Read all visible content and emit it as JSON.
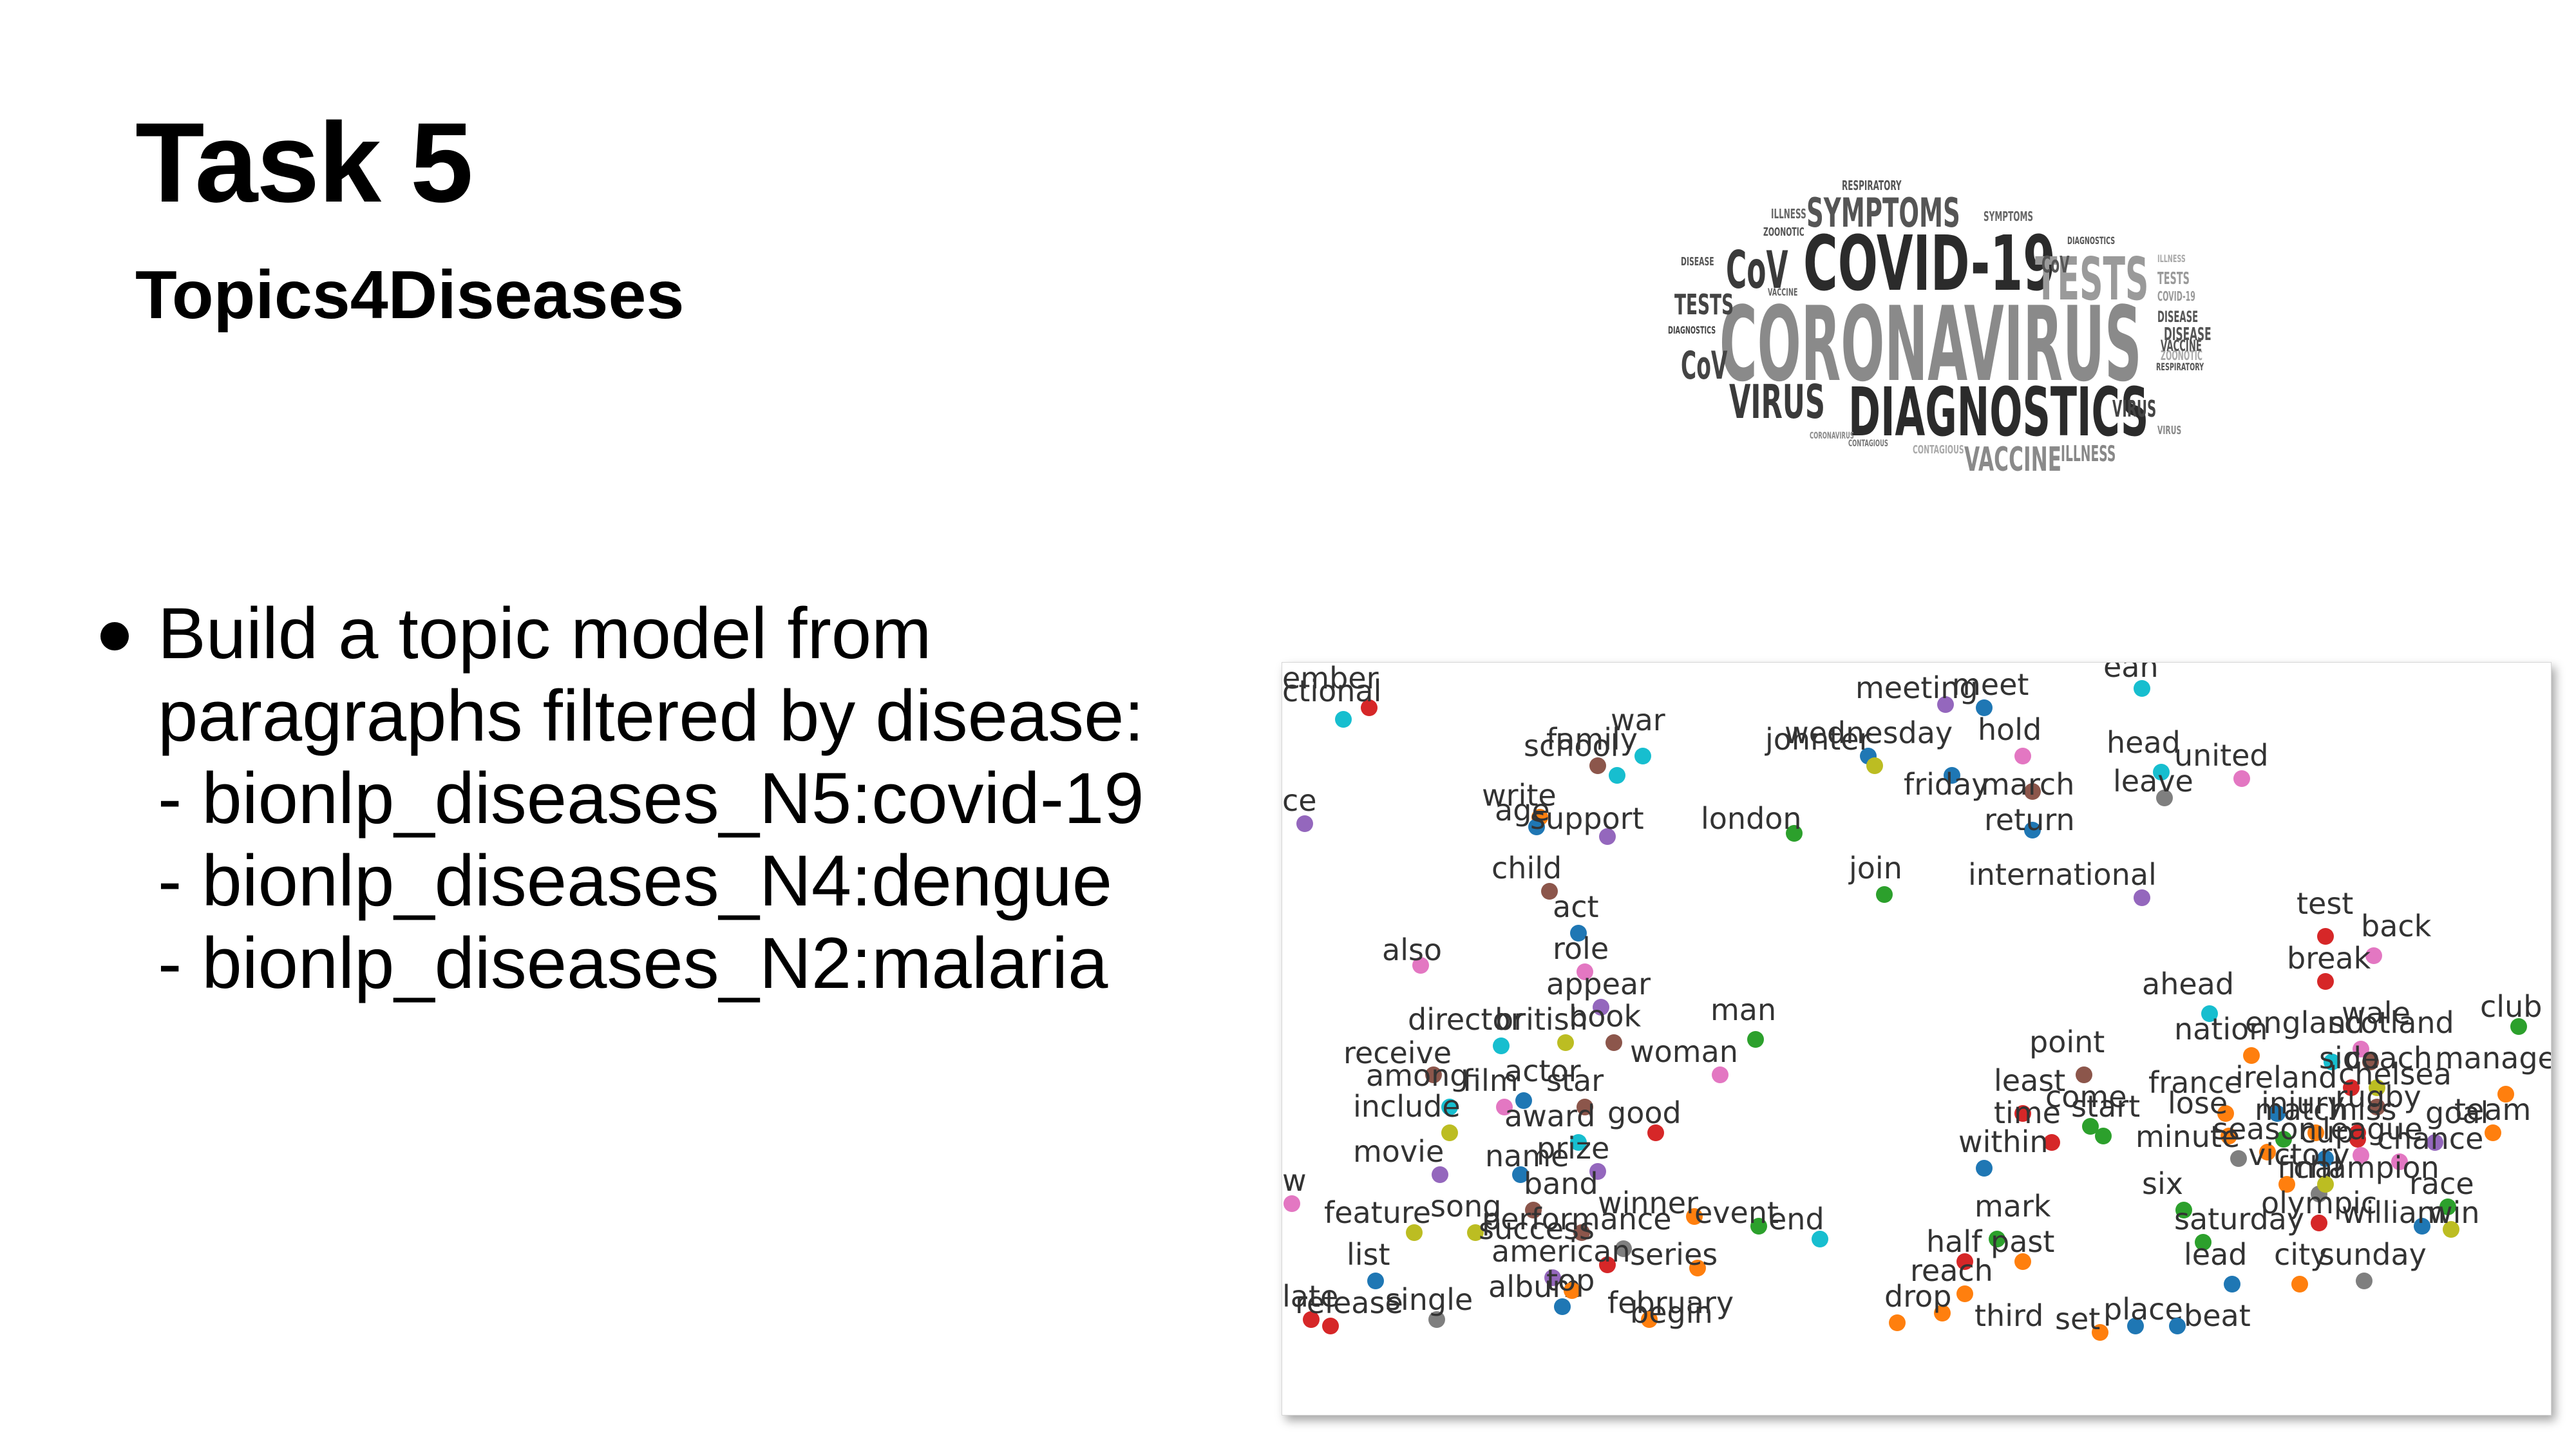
{
  "slide": {
    "title": "Task 5",
    "subtitle": "Topics4Diseases",
    "bullet": {
      "lines": [
        "Build a topic model from",
        "paragraphs filtered by disease:",
        "- bionlp_diseases_N5:covid-19",
        "- bionlp_diseases_N4:dengue",
        "- bionlp_diseases_N2:malaria"
      ]
    }
  },
  "wordcloud": {
    "words": [
      {
        "text": "COVID-19",
        "color": "#2b2b2b"
      },
      {
        "text": "CORONAVIRUS",
        "color": "#8a8a8a"
      },
      {
        "text": "DIAGNOSTICS",
        "color": "#2b2b2b"
      },
      {
        "text": "SYMPTOMS",
        "color": "#555555"
      },
      {
        "text": "TESTS",
        "color": "#9a9a9a"
      },
      {
        "text": "VIRUS",
        "color": "#3a3a3a"
      },
      {
        "text": "VACCINE",
        "color": "#8a8a8a"
      },
      {
        "text": "CoV",
        "color": "#3a3a3a"
      },
      {
        "text": "TESTS",
        "color": "#444444"
      },
      {
        "text": "CoV",
        "color": "#444444"
      },
      {
        "text": "ILLNESS",
        "color": "#666666"
      },
      {
        "text": "DISEASE",
        "color": "#555555"
      },
      {
        "text": "VACCINE",
        "color": "#666666"
      },
      {
        "text": "ZOONOTIC",
        "color": "#555555"
      },
      {
        "text": "RESPIRATORY",
        "color": "#555555"
      },
      {
        "text": "VIRUS",
        "color": "#444444"
      },
      {
        "text": "ILLNESS",
        "color": "#888888"
      },
      {
        "text": "SYMPTOMS",
        "color": "#666666"
      },
      {
        "text": "DIAGNOSTICS",
        "color": "#555555"
      },
      {
        "text": "TESTS",
        "color": "#9a9a9a"
      },
      {
        "text": "COVID-19",
        "color": "#9a9a9a"
      },
      {
        "text": "DISEASE",
        "color": "#555555"
      },
      {
        "text": "RESPIRATORY",
        "color": "#555555"
      },
      {
        "text": "ZOONOTIC",
        "color": "#aaaaaa"
      },
      {
        "text": "CONTAGIOUS",
        "color": "#777777"
      },
      {
        "text": "CONTAGIOUS",
        "color": "#aaaaaa"
      },
      {
        "text": "CoV",
        "color": "#555555"
      },
      {
        "text": "ILLNESS",
        "color": "#aaaaaa"
      },
      {
        "text": "VIRUS",
        "color": "#888888"
      },
      {
        "text": "CORONAVIRUS",
        "color": "#888888"
      },
      {
        "text": "DISEASE",
        "color": "#555555"
      },
      {
        "text": "VACCINE",
        "color": "#555555"
      },
      {
        "text": "DIAGNOSTICS",
        "color": "#444444"
      }
    ]
  },
  "scatter": {
    "colors": [
      "#1f77b4",
      "#ff7f0e",
      "#2ca02c",
      "#d62728",
      "#9467bd",
      "#8c564b",
      "#e377c2",
      "#7f7f7f",
      "#bcbd22",
      "#17becf"
    ],
    "points": [
      {
        "t": "ember",
        "c": 3
      },
      {
        "t": "ctional",
        "c": 9
      },
      {
        "t": "meeting",
        "c": 4
      },
      {
        "t": "meet",
        "c": 0
      },
      {
        "t": "ean",
        "c": 9
      },
      {
        "t": "family",
        "c": 5
      },
      {
        "t": "war",
        "c": 9
      },
      {
        "t": "school",
        "c": 9
      },
      {
        "t": "wednesday",
        "c": 0
      },
      {
        "t": "johnter",
        "c": 8
      },
      {
        "t": "hold",
        "c": 6
      },
      {
        "t": "head",
        "c": 9
      },
      {
        "t": "united",
        "c": 6
      },
      {
        "t": "ce",
        "c": 4
      },
      {
        "t": "friday",
        "c": 0
      },
      {
        "t": "march",
        "c": 5
      },
      {
        "t": "leave",
        "c": 7
      },
      {
        "t": "write",
        "c": 1
      },
      {
        "t": "age",
        "c": 0
      },
      {
        "t": "support",
        "c": 4
      },
      {
        "t": "london",
        "c": 2
      },
      {
        "t": "return",
        "c": 0
      },
      {
        "t": "child",
        "c": 5
      },
      {
        "t": "join",
        "c": 2
      },
      {
        "t": "international",
        "c": 4
      },
      {
        "t": "act",
        "c": 0
      },
      {
        "t": "test",
        "c": 3
      },
      {
        "t": "back",
        "c": 6
      },
      {
        "t": "also",
        "c": 6
      },
      {
        "t": "role",
        "c": 6
      },
      {
        "t": "break",
        "c": 3
      },
      {
        "t": "appear",
        "c": 4
      },
      {
        "t": "ahead",
        "c": 9
      },
      {
        "t": "club",
        "c": 2
      },
      {
        "t": "director",
        "c": 9
      },
      {
        "t": "british",
        "c": 8
      },
      {
        "t": "book",
        "c": 5
      },
      {
        "t": "man",
        "c": 2
      },
      {
        "t": "nation",
        "c": 1
      },
      {
        "t": "england",
        "c": 9
      },
      {
        "t": "wale",
        "c": 6
      },
      {
        "t": "scotland",
        "c": 5
      },
      {
        "t": "receive",
        "c": 5
      },
      {
        "t": "woman",
        "c": 6
      },
      {
        "t": "point",
        "c": 5
      },
      {
        "t": "side",
        "c": 3
      },
      {
        "t": "coach",
        "c": 8
      },
      {
        "t": "manager",
        "c": 1
      },
      {
        "t": "france",
        "c": 1
      },
      {
        "t": "ireland",
        "c": 0
      },
      {
        "t": "chelsea",
        "c": 5
      },
      {
        "t": "among",
        "c": 9
      },
      {
        "t": "film",
        "c": 6
      },
      {
        "t": "actor",
        "c": 0
      },
      {
        "t": "star",
        "c": 5
      },
      {
        "t": "least",
        "c": 3
      },
      {
        "t": "come",
        "c": 2
      },
      {
        "t": "include",
        "c": 8
      },
      {
        "t": "injury",
        "c": 1
      },
      {
        "t": "rugby",
        "c": 3
      },
      {
        "t": "team",
        "c": 1
      },
      {
        "t": "lose",
        "c": 1
      },
      {
        "t": "match",
        "c": 2
      },
      {
        "t": "miss",
        "c": 3
      },
      {
        "t": "goal",
        "c": 4
      },
      {
        "t": "award",
        "c": 9
      },
      {
        "t": "good",
        "c": 3
      },
      {
        "t": "time",
        "c": 3
      },
      {
        "t": "start",
        "c": 2
      },
      {
        "t": "minute",
        "c": 7
      },
      {
        "t": "season",
        "c": 1
      },
      {
        "t": "cup",
        "c": 0
      },
      {
        "t": "league",
        "c": 6
      },
      {
        "t": "chance",
        "c": 6
      },
      {
        "t": "prize",
        "c": 4
      },
      {
        "t": "within",
        "c": 0
      },
      {
        "t": "movie",
        "c": 4
      },
      {
        "t": "name",
        "c": 0
      },
      {
        "t": "victory",
        "c": 1
      },
      {
        "t": "final",
        "c": 7
      },
      {
        "t": "champion",
        "c": 8
      },
      {
        "t": "w",
        "c": 6
      },
      {
        "t": "six",
        "c": 2
      },
      {
        "t": "race",
        "c": 2
      },
      {
        "t": "band",
        "c": 5
      },
      {
        "t": "winner",
        "c": 1
      },
      {
        "t": "olympic",
        "c": 3
      },
      {
        "t": "william",
        "c": 0
      },
      {
        "t": "win",
        "c": 8
      },
      {
        "t": "feature",
        "c": 8
      },
      {
        "t": "song",
        "c": 8
      },
      {
        "t": "performance",
        "c": 5
      },
      {
        "t": "event",
        "c": 2
      },
      {
        "t": "end",
        "c": 9
      },
      {
        "t": "mark",
        "c": 2
      },
      {
        "t": "saturday",
        "c": 2
      },
      {
        "t": "success",
        "c": 7
      },
      {
        "t": "half",
        "c": 3
      },
      {
        "t": "past",
        "c": 1
      },
      {
        "t": "american",
        "c": 3
      },
      {
        "t": "series",
        "c": 1
      },
      {
        "t": "list",
        "c": 0
      },
      {
        "t": "lead",
        "c": 0
      },
      {
        "t": "city",
        "c": 1
      },
      {
        "t": "sunday",
        "c": 7
      },
      {
        "t": "reach",
        "c": 1
      },
      {
        "t": "album",
        "c": 4
      },
      {
        "t": "top",
        "c": 1
      },
      {
        "t": "february",
        "c": 0
      },
      {
        "t": "drop",
        "c": 1
      },
      {
        "t": "late",
        "c": 3
      },
      {
        "t": "release",
        "c": 3
      },
      {
        "t": "single",
        "c": 7
      },
      {
        "t": "begin",
        "c": 1
      },
      {
        "t": "third",
        "c": 1
      },
      {
        "t": "place",
        "c": 0
      },
      {
        "t": "set",
        "c": 1
      },
      {
        "t": "beat",
        "c": 0
      }
    ]
  }
}
